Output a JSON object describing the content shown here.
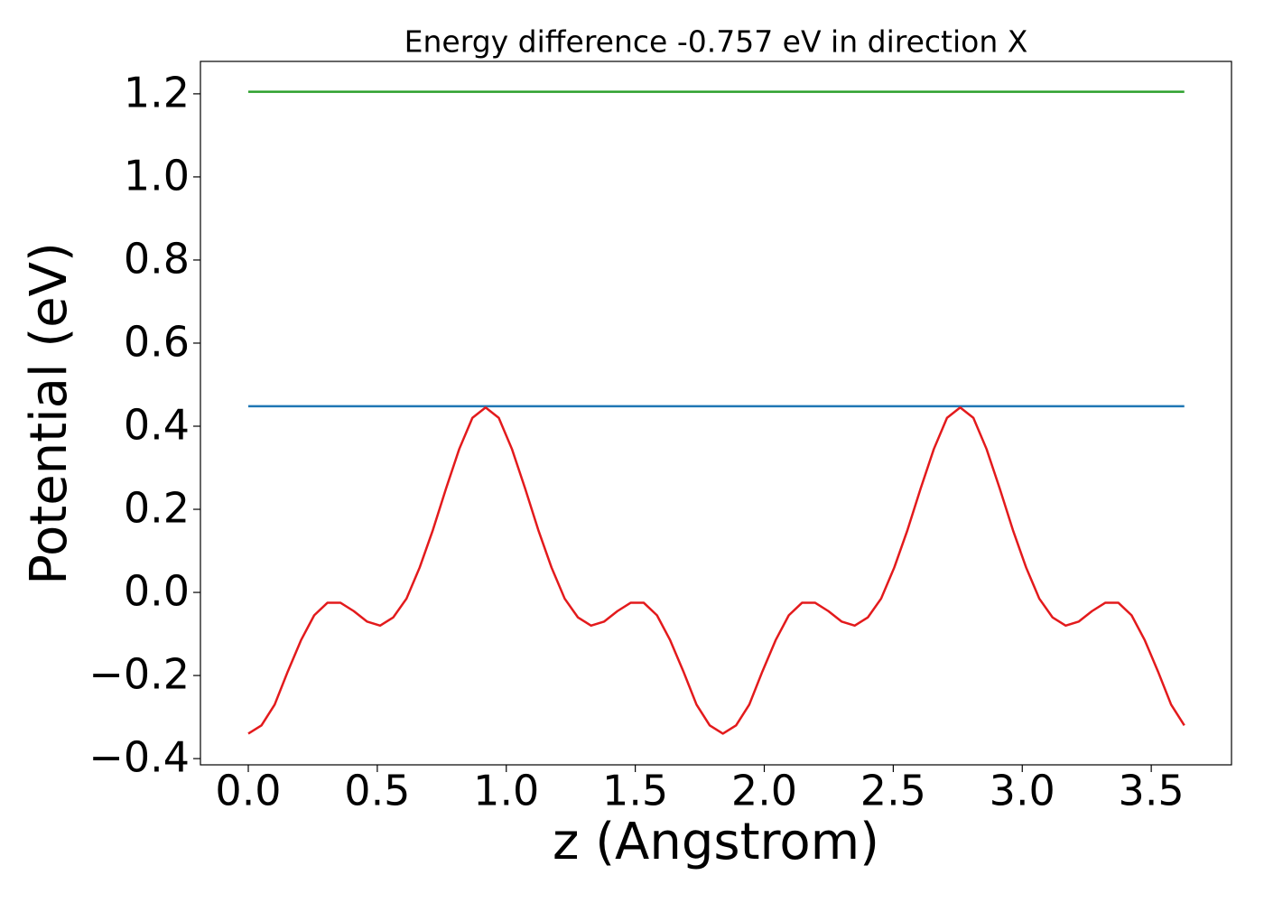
{
  "chart_data": {
    "type": "line",
    "title": "Energy difference -0.757 eV in direction X",
    "x_label": "z (Angstrom)",
    "y_label": "Potential (eV)",
    "xlim": [
      -0.1855,
      3.811
    ],
    "ylim": [
      -0.415,
      1.278
    ],
    "xticks": [
      {
        "value": 0,
        "label": "0.0"
      },
      0.5,
      {
        "value": 1,
        "label": "1.0"
      },
      1.5,
      {
        "value": 2,
        "label": "2.0"
      },
      2.5,
      {
        "value": 3,
        "label": "3.0"
      },
      3.5
    ],
    "yticks": [
      {
        "value": -0.4,
        "label": "−0.4"
      },
      {
        "value": -0.2,
        "label": "−0.2"
      },
      {
        "value": 0,
        "label": "0.0"
      },
      0.2,
      0.4,
      0.6,
      0.8,
      {
        "value": 1,
        "label": "1.0"
      },
      1.2
    ],
    "series": [
      {
        "color": "#1f77b4",
        "x": [
          0,
          3.6281
        ],
        "values": [
          0.448,
          0.448
        ]
      },
      {
        "color": "#2ca02c",
        "x": [
          0,
          3.6281
        ],
        "values": [
          1.205,
          1.205
        ]
      },
      {
        "color": "#e31a1c",
        "x": [
          0,
          0.0511,
          0.1022,
          0.1533,
          0.2044,
          0.2555,
          0.3066,
          0.3577,
          0.4088,
          0.4599,
          0.511,
          0.5621,
          0.6132,
          0.6643,
          0.7154,
          0.7665,
          0.8176,
          0.8687,
          0.9198,
          0.9709,
          1.022,
          1.0731,
          1.1242,
          1.1753,
          1.2264,
          1.2775,
          1.3286,
          1.3797,
          1.4308,
          1.4819,
          1.533,
          1.5841,
          1.6352,
          1.6863,
          1.7374,
          1.7885,
          1.8396,
          1.8907,
          1.9418,
          1.9929,
          2.044,
          2.0951,
          2.1462,
          2.1973,
          2.2484,
          2.2995,
          2.3506,
          2.4017,
          2.4528,
          2.5039,
          2.555,
          2.6061,
          2.6572,
          2.7083,
          2.7594,
          2.8105,
          2.8616,
          2.9127,
          2.9638,
          3.0149,
          3.066,
          3.1171,
          3.1682,
          3.2193,
          3.2704,
          3.3215,
          3.3726,
          3.4237,
          3.4748,
          3.5259,
          3.577,
          3.6281
        ],
        "values": [
          -0.34,
          -0.32,
          -0.27,
          -0.19,
          -0.115,
          -0.055,
          -0.025,
          -0.025,
          -0.045,
          -0.07,
          -0.08,
          -0.06,
          -0.015,
          0.06,
          0.15,
          0.25,
          0.345,
          0.42,
          0.445,
          0.42,
          0.345,
          0.25,
          0.15,
          0.06,
          -0.015,
          -0.06,
          -0.08,
          -0.07,
          -0.045,
          -0.025,
          -0.025,
          -0.055,
          -0.115,
          -0.19,
          -0.27,
          -0.32,
          -0.34,
          -0.32,
          -0.27,
          -0.19,
          -0.115,
          -0.055,
          -0.025,
          -0.025,
          -0.045,
          -0.07,
          -0.08,
          -0.06,
          -0.015,
          0.06,
          0.15,
          0.25,
          0.345,
          0.42,
          0.445,
          0.42,
          0.345,
          0.25,
          0.15,
          0.06,
          -0.015,
          -0.06,
          -0.08,
          -0.07,
          -0.045,
          -0.025,
          -0.025,
          -0.055,
          -0.115,
          -0.19,
          -0.27,
          -0.32
        ]
      }
    ]
  }
}
